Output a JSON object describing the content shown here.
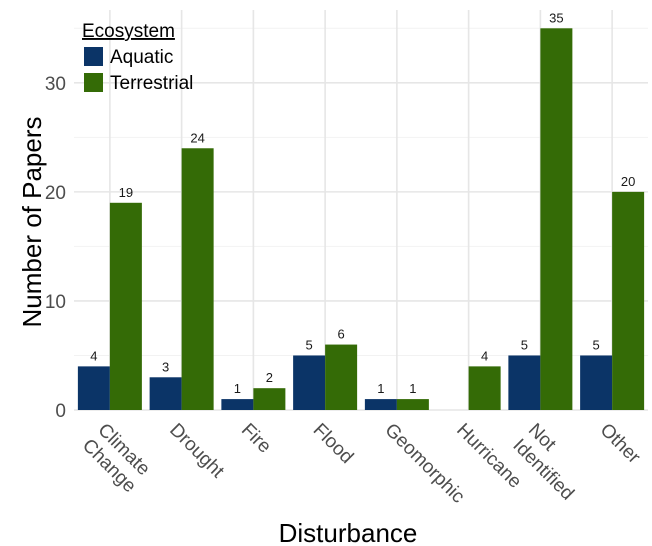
{
  "chart_data": {
    "type": "bar",
    "title": "",
    "xlabel": "Disturbance",
    "ylabel": "Number of Papers",
    "categories": [
      [
        "Climate",
        "Change"
      ],
      [
        "Drought"
      ],
      [
        "Fire"
      ],
      [
        "Flood"
      ],
      [
        "Geomorphic"
      ],
      [
        "Hurricane"
      ],
      [
        "Not",
        "Identified"
      ],
      [
        "Other"
      ]
    ],
    "series": [
      {
        "name": "Aquatic",
        "color": "#0b3467",
        "values": [
          4,
          3,
          1,
          5,
          1,
          null,
          5,
          5
        ]
      },
      {
        "name": "Terrestrial",
        "color": "#346b06",
        "values": [
          19,
          24,
          2,
          6,
          1,
          4,
          35,
          20
        ]
      }
    ],
    "ylim": [
      0,
      36
    ],
    "yticks": [
      0,
      10,
      20,
      30
    ],
    "grid": true,
    "legend": {
      "title": "Ecosystem",
      "placement": "top-left"
    }
  }
}
